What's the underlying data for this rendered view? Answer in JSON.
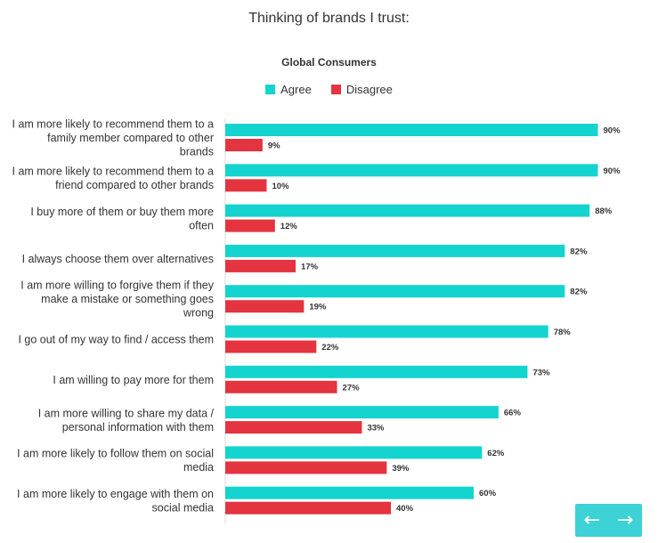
{
  "colors": {
    "agree": "#14d4cf",
    "disagree": "#e3343f",
    "nav_bg": "#3dd2d6"
  },
  "navigation": {
    "prev_icon": "arrow-left-icon",
    "next_icon": "arrow-right-icon",
    "prev_glyph": "←",
    "next_glyph": "→"
  },
  "chart_data": {
    "type": "bar",
    "orientation": "horizontal",
    "title": "Thinking of brands I trust:",
    "subtitle": "Global Consumers",
    "legend_position": "top",
    "grid": false,
    "categories": [
      "I am more likely to recommend them to a family member compared to other brands",
      "I am more likely to recommend them to a friend compared to other brands",
      "I buy more of them or buy them more often",
      "I always choose them over alternatives",
      "I am more willing to forgive them if they make a mistake or something goes wrong",
      "I go out of my way to find / access them",
      "I am willing to pay more for them",
      "I am more willing to share my data / personal information with them",
      "I am more likely to follow them on social media",
      "I am more likely to engage with them on social media"
    ],
    "category_lines": [
      [
        "I am more likely to recommend them to a",
        "family member compared to other",
        "brands"
      ],
      [
        "I am more likely to recommend them to a",
        "friend compared to other brands"
      ],
      [
        "I buy more of them or buy them more",
        "often"
      ],
      [
        "I always choose them over alternatives"
      ],
      [
        "I am more willing to forgive them if they",
        "make a mistake or something goes",
        "wrong"
      ],
      [
        "I go out of my way to find / access them"
      ],
      [
        "I am willing to pay more for them"
      ],
      [
        "I am more willing to share my data /",
        "personal information with them"
      ],
      [
        "I am more likely to follow them on social",
        "media"
      ],
      [
        "I am more likely to engage with them on",
        "social media"
      ]
    ],
    "series": [
      {
        "name": "Agree",
        "values": [
          90,
          90,
          88,
          82,
          82,
          78,
          73,
          66,
          62,
          60
        ]
      },
      {
        "name": "Disagree",
        "values": [
          9,
          10,
          12,
          17,
          19,
          22,
          27,
          33,
          39,
          40
        ]
      }
    ],
    "value_suffix": "%",
    "xlim": [
      0,
      100
    ]
  }
}
